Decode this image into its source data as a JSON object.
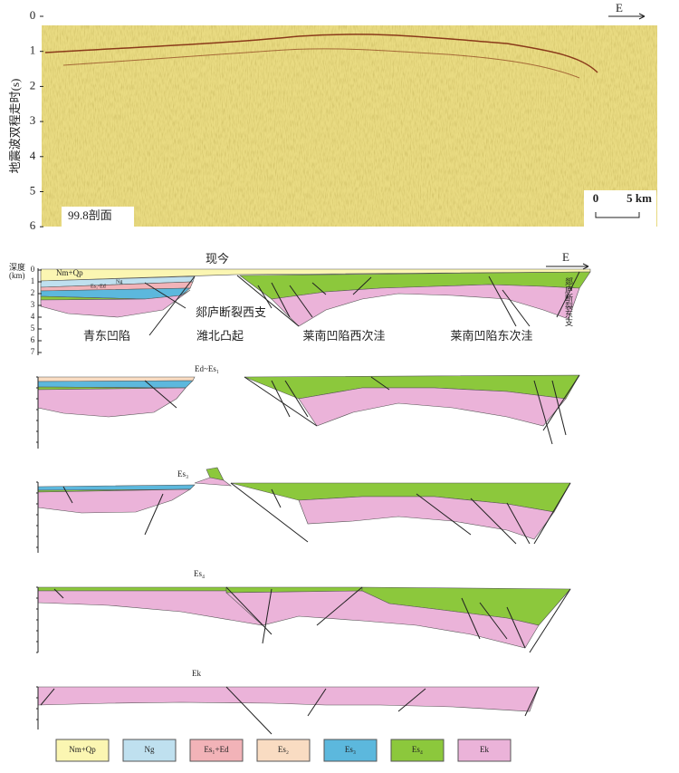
{
  "seismic": {
    "axis_label": "地震波双程走时(s)",
    "ticks": [
      0,
      1,
      2,
      3,
      4,
      5,
      6
    ],
    "direction": "E",
    "scale_bar": [
      "0",
      "5 km"
    ],
    "section_name": "99.8剖面"
  },
  "sections": [
    {
      "title": "现今",
      "depth_label": [
        "深度",
        "(km)"
      ],
      "depth_ticks": [
        0,
        1,
        2,
        3,
        4,
        5,
        6,
        7
      ],
      "layer_labels": [
        "Nm+Qp",
        "Ng",
        "Es₁-Ed"
      ],
      "direction": "E",
      "fault_labels": [
        "郯庐断裂西支",
        "郯庐断裂东支"
      ],
      "units": [
        "青东凹陷",
        "潍北凸起",
        "莱南凹陷西次洼",
        "莱南凹陷东次洼"
      ]
    },
    {
      "title": "Ed~Es₁"
    },
    {
      "title": "Es₃"
    },
    {
      "title": "Es₄"
    },
    {
      "title": "Ek"
    }
  ],
  "legend": [
    {
      "label": "Nm+Qp",
      "color": "#fbf6b2"
    },
    {
      "label": "Ng",
      "color": "#bfe0ef"
    },
    {
      "label": "Es₁+Ed",
      "color": "#f2b3b8"
    },
    {
      "label": "Es₂",
      "color": "#f9dcc2"
    },
    {
      "label": "Es₃",
      "color": "#5cb8dd"
    },
    {
      "label": "Es₄",
      "color": "#8cc83c"
    },
    {
      "label": "Ek",
      "color": "#ebb3d9"
    }
  ]
}
